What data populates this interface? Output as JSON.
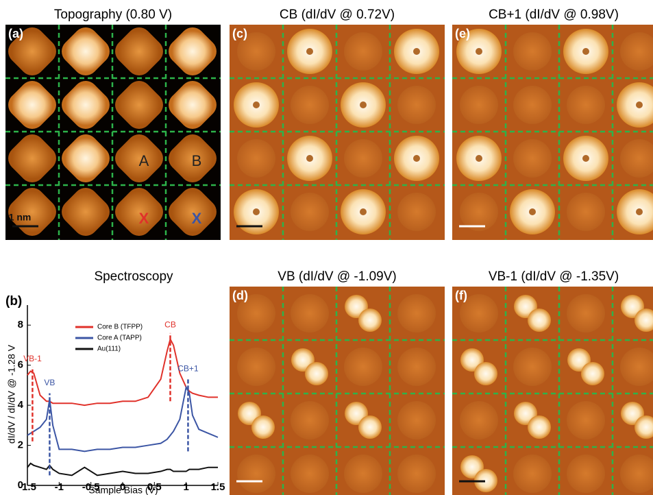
{
  "panels": [
    {
      "label": "(a)",
      "title": "Topography (0.80 V)",
      "scale_bar": "1 nm",
      "annotations": [
        "A",
        "B",
        "X",
        "X"
      ]
    },
    {
      "label": "(c)",
      "title": "CB (dI/dV @ 0.72V)"
    },
    {
      "label": "(e)",
      "title": "CB+1 (dI/dV @ 0.98V)"
    },
    {
      "label": "(d)",
      "title": "VB (dI/dV @ -1.09V)"
    },
    {
      "label": "(f)",
      "title": "VB-1 (dI/dV @ -1.35V)"
    }
  ],
  "chart_data": {
    "type": "line",
    "label": "(b)",
    "title": "Spectroscopy",
    "x_label": "Sample Bias (V)",
    "y_label": "dI/dV / dI/dV @ -1.28 V",
    "x": [
      -1.5,
      -1.45,
      -1.4,
      -1.3,
      -1.2,
      -1.15,
      -1.1,
      -1,
      -0.8,
      -0.6,
      -0.4,
      -0.2,
      0,
      0.2,
      0.4,
      0.6,
      0.7,
      0.75,
      0.8,
      0.9,
      1,
      1.05,
      1.1,
      1.2,
      1.35,
      1.5
    ],
    "series": [
      {
        "name": "Core B (TFPP)",
        "color": "#e0312a",
        "values": [
          5.5,
          5.7,
          5.6,
          4.5,
          4.2,
          4.2,
          4.1,
          4.1,
          4.1,
          4.0,
          4.1,
          4.1,
          4.2,
          4.2,
          4.4,
          5.3,
          6.7,
          7.3,
          7.0,
          5.6,
          4.9,
          4.7,
          4.6,
          4.5,
          4.4,
          4.4
        ]
      },
      {
        "name": "Core A (TAPP)",
        "color": "#3b55a4",
        "values": [
          2.5,
          2.6,
          2.7,
          2.9,
          3.3,
          4.3,
          3.0,
          1.8,
          1.8,
          1.7,
          1.8,
          1.8,
          1.9,
          1.9,
          2.0,
          2.1,
          2.3,
          2.5,
          2.7,
          3.3,
          4.9,
          4.6,
          3.5,
          2.8,
          2.6,
          2.4
        ]
      },
      {
        "name": "Au(111)",
        "color": "#111111",
        "values": [
          0.9,
          1.1,
          1.0,
          0.9,
          0.8,
          1.0,
          0.8,
          0.6,
          0.5,
          0.9,
          0.5,
          0.6,
          0.7,
          0.6,
          0.6,
          0.7,
          0.8,
          0.8,
          0.7,
          0.7,
          0.7,
          0.8,
          0.8,
          0.8,
          0.9,
          0.9
        ]
      }
    ],
    "annotations": [
      {
        "text": "VB-1",
        "x": -1.42,
        "y0": 2.2,
        "y1": 5.9,
        "y": 6.3,
        "color": "#e0312a"
      },
      {
        "text": "VB",
        "x": -1.15,
        "y0": 0.5,
        "y1": 4.6,
        "y": 5.1,
        "color": "#3b55a4"
      },
      {
        "text": "CB",
        "x": 0.75,
        "y0": 4.2,
        "y1": 7.6,
        "y": 8.0,
        "color": "#e0312a"
      },
      {
        "text": "CB+1",
        "x": 1.03,
        "y0": 1.7,
        "y1": 5.3,
        "y": 5.8,
        "color": "#3b55a4"
      }
    ],
    "xlim": [
      -1.5,
      1.5
    ],
    "xticks": [
      -1.5,
      -1,
      -0.5,
      0,
      0.5,
      1,
      1.5
    ],
    "ylim": [
      0,
      9
    ],
    "yticks": [
      0,
      2,
      4,
      6,
      8
    ]
  }
}
